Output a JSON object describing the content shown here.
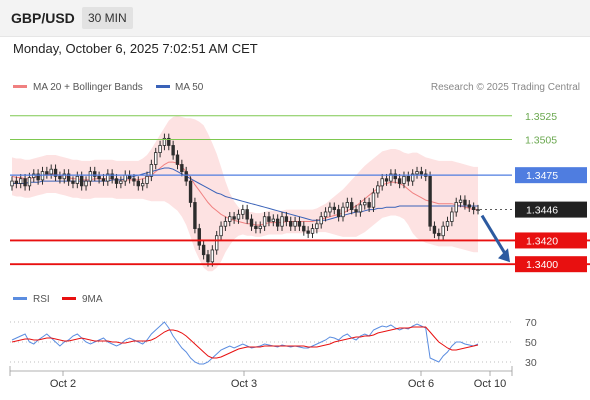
{
  "header": {
    "pair": "GBP/USD",
    "timeframe": "30 MIN",
    "datetime": "Monday, October 6, 2025 7:02:51 AM CET"
  },
  "legend": {
    "ma20_label": "MA 20 + Bollinger Bands",
    "ma50_label": "MA 50",
    "rsi_label": "RSI",
    "rsi_ma_label": "9MA",
    "copyright": "Research © 2025 Trading Central"
  },
  "colors": {
    "bollinger_fill": "#fde2e2",
    "ma20": "#f08080",
    "ma50": "#3a62b8",
    "candle": "#2d2d2d",
    "resistance": "#7ec850",
    "pivot": "#4f7de0",
    "support": "#e81010",
    "arrow": "#2c5aa0",
    "rsi": "#5b8de0",
    "rsi_ma": "#e81010",
    "current_price_box": "#222222"
  },
  "chart_data": [
    {
      "type": "candlestick",
      "ylim": [
        1.3385,
        1.354
      ],
      "x_labels": [
        "Oct 2",
        "Oct 3",
        "Oct 6",
        "Oct 10"
      ],
      "levels": [
        {
          "value": 1.3525,
          "label": "1.3525",
          "kind": "resistance"
        },
        {
          "value": 1.3505,
          "label": "1.3505",
          "kind": "resistance"
        },
        {
          "value": 1.3475,
          "label": "1.3475",
          "kind": "pivot"
        },
        {
          "value": 1.3446,
          "label": "1.3446",
          "kind": "current"
        },
        {
          "value": 1.342,
          "label": "1.3420",
          "kind": "support"
        },
        {
          "value": 1.34,
          "label": "1.3400",
          "kind": "support"
        }
      ],
      "closes": [
        1.347,
        1.3468,
        1.3472,
        1.3466,
        1.3473,
        1.3476,
        1.3471,
        1.3478,
        1.3476,
        1.348,
        1.3474,
        1.3472,
        1.3476,
        1.347,
        1.3468,
        1.3474,
        1.3466,
        1.347,
        1.3478,
        1.3474,
        1.3472,
        1.347,
        1.3476,
        1.3472,
        1.3468,
        1.347,
        1.3475,
        1.3472,
        1.347,
        1.3466,
        1.3468,
        1.3474,
        1.3484,
        1.3494,
        1.35,
        1.3506,
        1.35,
        1.3492,
        1.3484,
        1.3478,
        1.347,
        1.3452,
        1.343,
        1.3416,
        1.3408,
        1.3402,
        1.3412,
        1.3424,
        1.3432,
        1.3436,
        1.344,
        1.3438,
        1.3442,
        1.3446,
        1.3438,
        1.3432,
        1.343,
        1.3432,
        1.344,
        1.3436,
        1.3438,
        1.3432,
        1.344,
        1.3436,
        1.3432,
        1.3436,
        1.3432,
        1.3428,
        1.3426,
        1.343,
        1.3434,
        1.344,
        1.3444,
        1.3448,
        1.3446,
        1.344,
        1.3448,
        1.3452,
        1.3446,
        1.3444,
        1.345,
        1.3452,
        1.3448,
        1.346,
        1.3466,
        1.3472,
        1.347,
        1.3476,
        1.3472,
        1.3468,
        1.3474,
        1.347,
        1.3476,
        1.3478,
        1.3476,
        1.3474,
        1.3432,
        1.3426,
        1.3424,
        1.3432,
        1.3436,
        1.3444,
        1.3452,
        1.3454,
        1.345,
        1.3448,
        1.3446,
        1.3446
      ],
      "ma20": [
        1.3474,
        1.3473,
        1.3473,
        1.3472,
        1.3472,
        1.3473,
        1.3474,
        1.3475,
        1.3476,
        1.3476,
        1.3476,
        1.3475,
        1.3474,
        1.3473,
        1.3472,
        1.3472,
        1.3471,
        1.3471,
        1.3471,
        1.3472,
        1.3472,
        1.3472,
        1.3472,
        1.3472,
        1.3471,
        1.3471,
        1.3471,
        1.3471,
        1.3471,
        1.3471,
        1.3472,
        1.3473,
        1.3475,
        1.3478,
        1.3481,
        1.3484,
        1.3486,
        1.3486,
        1.3485,
        1.3482,
        1.3478,
        1.3473,
        1.3467,
        1.3462,
        1.3457,
        1.3452,
        1.3448,
        1.3445,
        1.3442,
        1.344,
        1.3438,
        1.3437,
        1.3436,
        1.3435,
        1.3434,
        1.3434,
        1.3433,
        1.3433,
        1.3434,
        1.3435,
        1.3435,
        1.3435,
        1.3435,
        1.3436,
        1.3436,
        1.3436,
        1.3436,
        1.3436,
        1.3436,
        1.3436,
        1.3437,
        1.3438,
        1.3439,
        1.344,
        1.3441,
        1.3442,
        1.3443,
        1.3445,
        1.3447,
        1.3449,
        1.3452,
        1.3455,
        1.3458,
        1.3461,
        1.3464,
        1.3467,
        1.3468,
        1.3469,
        1.3469,
        1.3468,
        1.3466,
        1.3463,
        1.346,
        1.3458,
        1.3456,
        1.3454,
        1.3453,
        1.3452,
        1.3451,
        1.3451,
        1.3451,
        1.3451,
        1.345,
        1.3449,
        1.3448,
        1.3447,
        1.3446,
        1.3446
      ],
      "ma50": [
        1.3468,
        1.3468,
        1.3468,
        1.3468,
        1.3469,
        1.3469,
        1.3469,
        1.347,
        1.347,
        1.347,
        1.347,
        1.347,
        1.347,
        1.347,
        1.347,
        1.347,
        1.347,
        1.347,
        1.347,
        1.347,
        1.347,
        1.347,
        1.347,
        1.3471,
        1.3471,
        1.3471,
        1.3472,
        1.3473,
        1.3474,
        1.3475,
        1.3476,
        1.3477,
        1.3478,
        1.3479,
        1.348,
        1.3481,
        1.3481,
        1.348,
        1.3478,
        1.3476,
        1.3474,
        1.3472,
        1.347,
        1.3468,
        1.3466,
        1.3464,
        1.3462,
        1.346,
        1.3459,
        1.3457,
        1.3456,
        1.3455,
        1.3454,
        1.3453,
        1.3452,
        1.3451,
        1.345,
        1.3449,
        1.3448,
        1.3447,
        1.3446,
        1.3445,
        1.3444,
        1.3443,
        1.3442,
        1.3441,
        1.344,
        1.3439,
        1.3438,
        1.3437,
        1.3437,
        1.3437,
        1.3437,
        1.3438,
        1.3439,
        1.344,
        1.3441,
        1.3442,
        1.3443,
        1.3444,
        1.3444,
        1.3445,
        1.3446,
        1.3446,
        1.3447,
        1.3447,
        1.3448,
        1.3448,
        1.3448,
        1.3449,
        1.3449,
        1.3449,
        1.3449,
        1.3449,
        1.3449,
        1.3449,
        1.3449,
        1.3449,
        1.3449,
        1.3449,
        1.3449,
        1.3449,
        1.3449,
        1.3449,
        1.3449,
        1.3449,
        1.3449,
        1.3449
      ],
      "bb_width": [
        0.0016,
        0.0016,
        0.0016,
        0.0016,
        0.0016,
        0.0016,
        0.0016,
        0.0016,
        0.0016,
        0.0016,
        0.0016,
        0.0016,
        0.0016,
        0.0016,
        0.0016,
        0.0016,
        0.0016,
        0.0016,
        0.0016,
        0.0016,
        0.0016,
        0.0016,
        0.0016,
        0.0016,
        0.0016,
        0.0016,
        0.0016,
        0.0016,
        0.0016,
        0.0016,
        0.0017,
        0.0019,
        0.0022,
        0.0025,
        0.0028,
        0.0031,
        0.0035,
        0.0038,
        0.004,
        0.0042,
        0.0045,
        0.005,
        0.0055,
        0.0058,
        0.006,
        0.0058,
        0.0054,
        0.0048,
        0.004,
        0.003,
        0.0022,
        0.0016,
        0.0012,
        0.001,
        0.001,
        0.001,
        0.001,
        0.001,
        0.001,
        0.001,
        0.001,
        0.001,
        0.001,
        0.001,
        0.001,
        0.001,
        0.001,
        0.001,
        0.001,
        0.001,
        0.001,
        0.0011,
        0.0012,
        0.0014,
        0.0016,
        0.0018,
        0.002,
        0.0022,
        0.0024,
        0.0026,
        0.0027,
        0.0028,
        0.0028,
        0.0028,
        0.0028,
        0.0028,
        0.0028,
        0.0028,
        0.0028,
        0.0028,
        0.0028,
        0.003,
        0.0034,
        0.0036,
        0.0036,
        0.0036,
        0.0036,
        0.0036,
        0.0036,
        0.0036,
        0.0036,
        0.0036,
        0.0036,
        0.0036,
        0.0036,
        0.0036,
        0.0036,
        0.0036
      ],
      "forecast_arrow": {
        "from": 1.3446,
        "to": 1.34
      }
    },
    {
      "type": "line",
      "name": "RSI",
      "ylim": [
        20,
        80
      ],
      "y_ticks": [
        70,
        50,
        30
      ],
      "rsi": [
        52,
        54,
        56,
        58,
        50,
        48,
        52,
        55,
        58,
        54,
        50,
        46,
        50,
        52,
        56,
        58,
        54,
        50,
        48,
        50,
        52,
        54,
        50,
        48,
        46,
        48,
        52,
        54,
        52,
        50,
        48,
        52,
        58,
        62,
        66,
        70,
        64,
        56,
        50,
        44,
        40,
        34,
        30,
        28,
        28,
        30,
        34,
        38,
        42,
        44,
        46,
        44,
        46,
        48,
        46,
        44,
        45,
        46,
        48,
        47,
        46,
        45,
        47,
        46,
        45,
        46,
        45,
        44,
        44,
        46,
        48,
        50,
        52,
        55,
        54,
        52,
        56,
        58,
        54,
        52,
        56,
        58,
        56,
        62,
        64,
        66,
        65,
        67,
        64,
        62,
        64,
        63,
        66,
        68,
        66,
        64,
        34,
        32,
        30,
        36,
        40,
        46,
        50,
        50,
        48,
        47,
        46,
        48
      ],
      "rsi_ma": [
        50,
        51,
        52,
        53,
        53,
        52,
        52,
        53,
        54,
        54,
        53,
        52,
        51,
        51,
        52,
        53,
        54,
        53,
        52,
        51,
        51,
        51,
        51,
        50,
        50,
        49,
        49,
        50,
        51,
        51,
        51,
        51,
        52,
        54,
        57,
        60,
        62,
        62,
        61,
        59,
        56,
        52,
        48,
        44,
        40,
        36,
        34,
        34,
        35,
        37,
        39,
        41,
        43,
        44,
        45,
        45,
        45,
        45,
        46,
        46,
        46,
        46,
        46,
        46,
        46,
        46,
        46,
        46,
        45,
        45,
        45,
        46,
        47,
        48,
        50,
        51,
        52,
        53,
        54,
        55,
        55,
        56,
        56,
        57,
        59,
        60,
        61,
        62,
        63,
        64,
        64,
        64,
        65,
        65,
        65,
        65,
        60,
        55,
        50,
        47,
        44,
        42,
        42,
        43,
        44,
        45,
        46,
        47
      ]
    }
  ]
}
